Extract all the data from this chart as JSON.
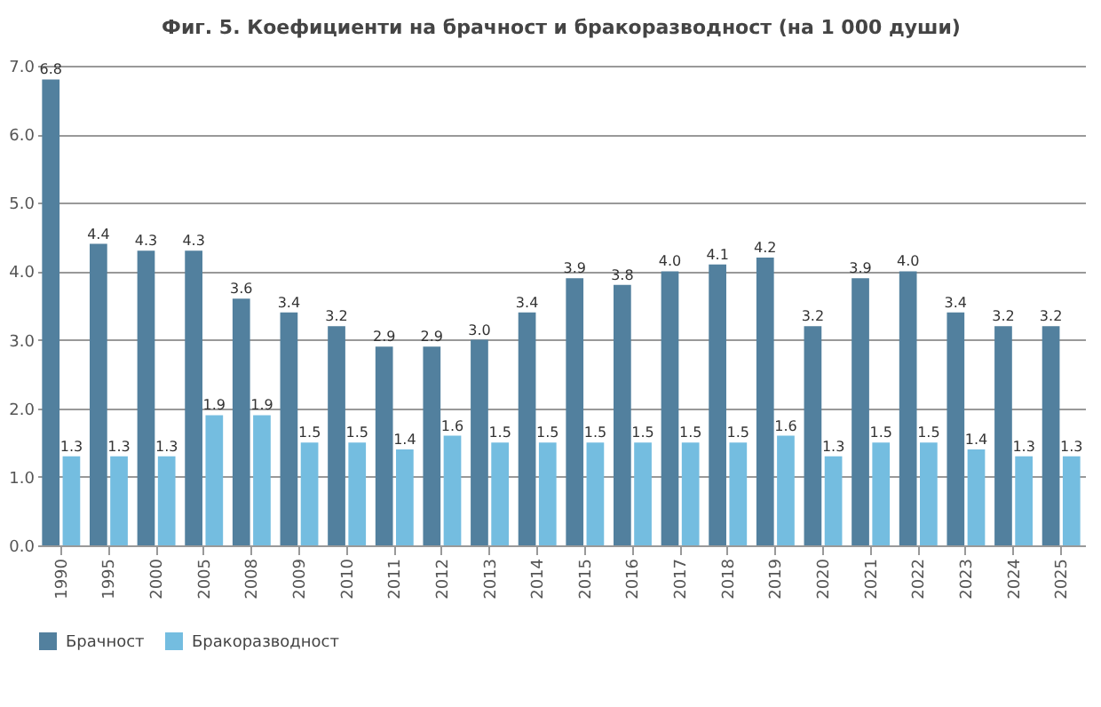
{
  "chart_data": {
    "type": "bar",
    "title": "Фиг. 5. Коефициенти на брачност и бракоразводност  (на 1 000 души)",
    "categories": [
      "1990",
      "1995",
      "2000",
      "2005",
      "2008",
      "2009",
      "2010",
      "2011",
      "2012",
      "2013",
      "2014",
      "2015",
      "2016",
      "2017",
      "2018",
      "2019",
      "2020",
      "2021",
      "2022",
      "2023",
      "2024",
      "2025"
    ],
    "series": [
      {
        "name": "Брачност",
        "color": "#52809e",
        "values": [
          6.8,
          4.4,
          4.3,
          4.3,
          3.6,
          3.4,
          3.2,
          2.9,
          2.9,
          3.0,
          3.4,
          3.9,
          3.8,
          4.0,
          4.1,
          4.2,
          3.2,
          3.9,
          4.0,
          3.4,
          3.2,
          3.2
        ],
        "value_labels": [
          "6.8",
          "4.4",
          "4.3",
          "4.3",
          "3.6",
          "3.4",
          "3.2",
          "2.9",
          "2.9",
          "3.0",
          "3.4",
          "3.9",
          "3.8",
          "4.0",
          "4.1",
          "4.2",
          "3.2",
          "3.9",
          "4.0",
          "3.4",
          "3.2",
          "3.2"
        ]
      },
      {
        "name": "Бракоразводност",
        "color": "#74bde0",
        "values": [
          1.3,
          1.3,
          1.3,
          1.9,
          1.9,
          1.5,
          1.5,
          1.4,
          1.6,
          1.5,
          1.5,
          1.5,
          1.5,
          1.5,
          1.5,
          1.6,
          1.3,
          1.5,
          1.5,
          1.4,
          1.3,
          1.3
        ],
        "value_labels": [
          "1.3",
          "1.3",
          "1.3",
          "1.9",
          "1.9",
          "1.5",
          "1.5",
          "1.4",
          "1.6",
          "1.5",
          "1.5",
          "1.5",
          "1.5",
          "1.5",
          "1.5",
          "1.6",
          "1.3",
          "1.5",
          "1.5",
          "1.4",
          "1.3",
          "1.3"
        ]
      }
    ],
    "ylim": [
      0,
      7
    ],
    "yticks": [
      {
        "value": 0,
        "label": "0.0"
      },
      {
        "value": 1,
        "label": "1.0"
      },
      {
        "value": 2,
        "label": "2.0"
      },
      {
        "value": 3,
        "label": "3.0"
      },
      {
        "value": 4,
        "label": "4.0"
      },
      {
        "value": 5,
        "label": "5.0"
      },
      {
        "value": 6,
        "label": "6.0"
      },
      {
        "value": 7,
        "label": "7.0"
      }
    ],
    "grid": "y",
    "legend": "bottom"
  }
}
